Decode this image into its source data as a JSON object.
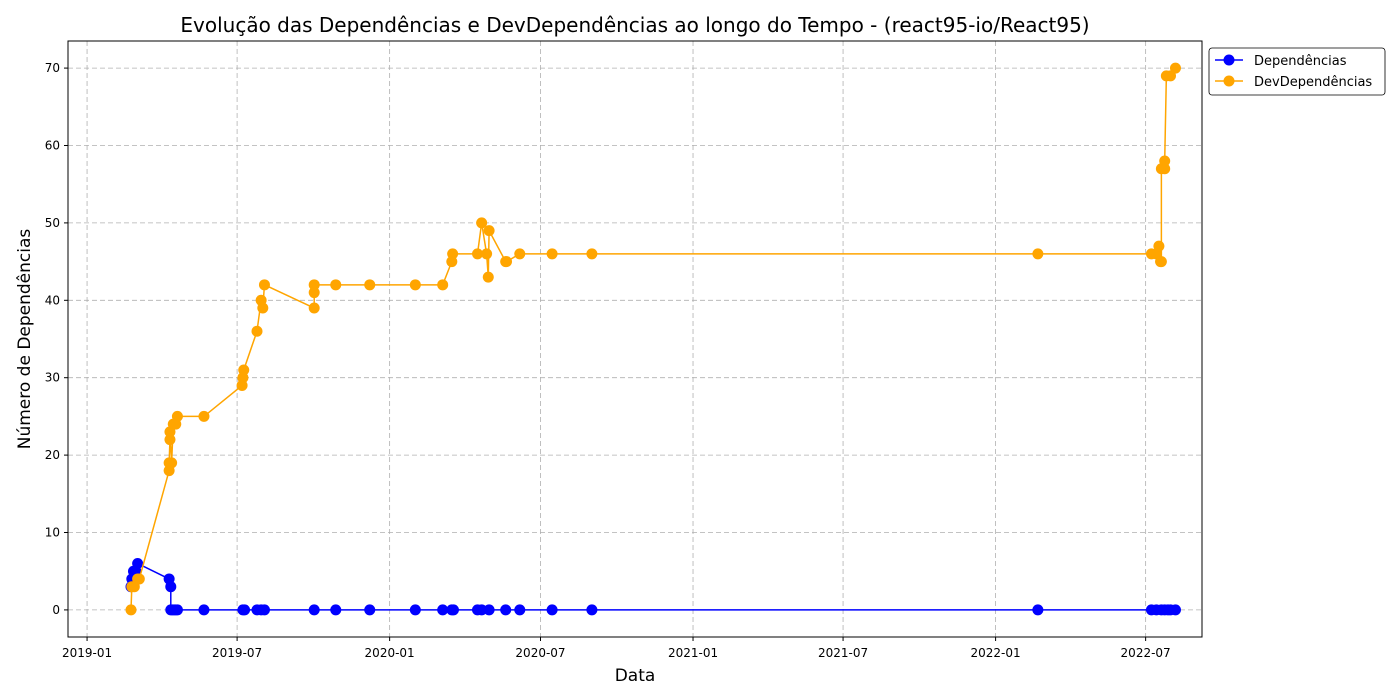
{
  "chart_data": {
    "type": "line",
    "title": "Evolução das Dependências e DevDependências ao longo do Tempo - (react95-io/React95)",
    "xlabel": "Data",
    "ylabel": "Número de Dependências",
    "xlim": [
      "2018-12-09",
      "2022-09-07"
    ],
    "ylim": [
      -3.5,
      73.5
    ],
    "x_ticks": [
      "2019-01",
      "2019-07",
      "2020-01",
      "2020-07",
      "2021-01",
      "2021-07",
      "2022-01",
      "2022-07"
    ],
    "y_ticks": [
      0,
      10,
      20,
      30,
      40,
      50,
      60,
      70
    ],
    "grid": true,
    "legend_position": "outside-top-right",
    "series": [
      {
        "name": "Dependências",
        "color": "#0000ff",
        "points": [
          [
            "2019-02-23",
            3
          ],
          [
            "2019-02-24",
            4
          ],
          [
            "2019-02-26",
            5
          ],
          [
            "2019-03-01",
            5
          ],
          [
            "2019-03-03",
            6
          ],
          [
            "2019-04-10",
            4
          ],
          [
            "2019-04-12",
            3
          ],
          [
            "2019-04-12",
            0
          ],
          [
            "2019-04-14",
            0
          ],
          [
            "2019-04-16",
            0
          ],
          [
            "2019-04-18",
            0
          ],
          [
            "2019-04-20",
            0
          ],
          [
            "2019-05-22",
            0
          ],
          [
            "2019-07-08",
            0
          ],
          [
            "2019-07-10",
            0
          ],
          [
            "2019-07-25",
            0
          ],
          [
            "2019-07-30",
            0
          ],
          [
            "2019-08-03",
            0
          ],
          [
            "2019-10-02",
            0
          ],
          [
            "2019-10-28",
            0
          ],
          [
            "2019-12-08",
            0
          ],
          [
            "2020-02-01",
            0
          ],
          [
            "2020-03-05",
            0
          ],
          [
            "2020-03-16",
            0
          ],
          [
            "2020-03-18",
            0
          ],
          [
            "2020-04-16",
            0
          ],
          [
            "2020-04-21",
            0
          ],
          [
            "2020-04-30",
            0
          ],
          [
            "2020-05-20",
            0
          ],
          [
            "2020-06-06",
            0
          ],
          [
            "2020-07-15",
            0
          ],
          [
            "2020-09-01",
            0
          ],
          [
            "2022-02-21",
            0
          ],
          [
            "2022-07-08",
            0
          ],
          [
            "2022-07-14",
            0
          ],
          [
            "2022-07-20",
            0
          ],
          [
            "2022-07-24",
            0
          ],
          [
            "2022-07-28",
            0
          ],
          [
            "2022-07-31",
            0
          ],
          [
            "2022-08-06",
            0
          ]
        ]
      },
      {
        "name": "DevDependências",
        "color": "#ffa500",
        "points": [
          [
            "2019-02-23",
            0
          ],
          [
            "2019-02-24",
            3
          ],
          [
            "2019-02-27",
            3
          ],
          [
            "2019-03-03",
            4
          ],
          [
            "2019-03-05",
            4
          ],
          [
            "2019-04-10",
            18
          ],
          [
            "2019-04-10",
            19
          ],
          [
            "2019-04-11",
            22
          ],
          [
            "2019-04-11",
            23
          ],
          [
            "2019-04-13",
            19
          ],
          [
            "2019-04-15",
            24
          ],
          [
            "2019-04-18",
            24
          ],
          [
            "2019-04-20",
            25
          ],
          [
            "2019-05-22",
            25
          ],
          [
            "2019-07-07",
            29
          ],
          [
            "2019-07-08",
            30
          ],
          [
            "2019-07-09",
            31
          ],
          [
            "2019-07-25",
            36
          ],
          [
            "2019-07-30",
            40
          ],
          [
            "2019-08-01",
            39
          ],
          [
            "2019-08-03",
            42
          ],
          [
            "2019-10-02",
            39
          ],
          [
            "2019-10-02",
            41
          ],
          [
            "2019-10-02",
            42
          ],
          [
            "2019-10-28",
            42
          ],
          [
            "2019-12-08",
            42
          ],
          [
            "2020-02-01",
            42
          ],
          [
            "2020-03-05",
            42
          ],
          [
            "2020-03-16",
            45
          ],
          [
            "2020-03-17",
            46
          ],
          [
            "2020-04-16",
            46
          ],
          [
            "2020-04-21",
            50
          ],
          [
            "2020-04-27",
            46
          ],
          [
            "2020-04-29",
            43
          ],
          [
            "2020-04-30",
            49
          ],
          [
            "2020-05-20",
            45
          ],
          [
            "2020-05-21",
            45
          ],
          [
            "2020-06-06",
            46
          ],
          [
            "2020-07-15",
            46
          ],
          [
            "2020-09-01",
            46
          ],
          [
            "2022-02-21",
            46
          ],
          [
            "2022-07-08",
            46
          ],
          [
            "2022-07-14",
            46
          ],
          [
            "2022-07-17",
            47
          ],
          [
            "2022-07-19",
            45
          ],
          [
            "2022-07-20",
            45
          ],
          [
            "2022-07-20",
            57
          ],
          [
            "2022-07-24",
            57
          ],
          [
            "2022-07-24",
            58
          ],
          [
            "2022-07-26",
            69
          ],
          [
            "2022-07-31",
            69
          ],
          [
            "2022-08-06",
            70
          ]
        ]
      }
    ]
  }
}
